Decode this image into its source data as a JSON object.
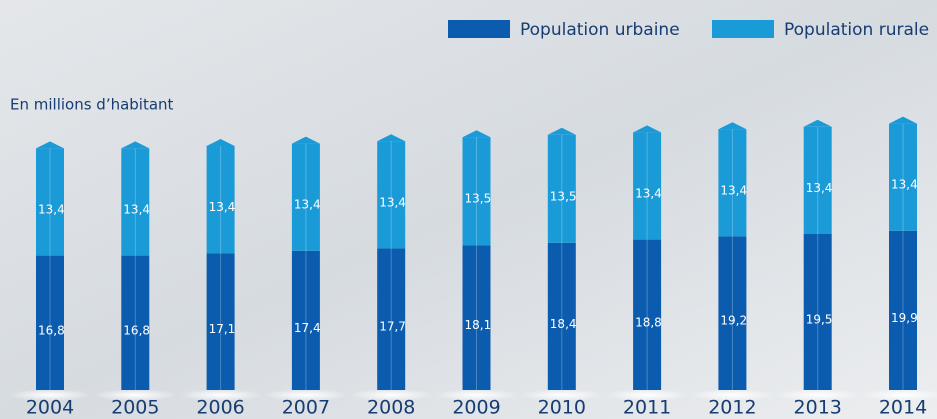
{
  "chart_data": {
    "type": "bar",
    "stacked": true,
    "y_label": "En millions d’habitant",
    "legend": "top-right",
    "categories": [
      "2004",
      "2005",
      "2006",
      "2007",
      "2008",
      "2009",
      "2010",
      "2011",
      "2012",
      "2013",
      "2014"
    ],
    "series": [
      {
        "name": "Population urbaine",
        "color": "#0b5cae",
        "values": [
          16.8,
          16.8,
          17.1,
          17.4,
          17.7,
          18.1,
          18.4,
          18.8,
          19.2,
          19.5,
          19.9
        ],
        "value_labels": [
          "16,8",
          "16,8",
          "17,1",
          "17,4",
          "17,7",
          "18,1",
          "18,4",
          "18,8",
          "19,2",
          "19,5",
          "19,9"
        ]
      },
      {
        "name": "Population rurale",
        "color": "#1b9ad8",
        "values": [
          13.4,
          13.4,
          13.4,
          13.4,
          13.4,
          13.5,
          13.5,
          13.4,
          13.4,
          13.4,
          13.4
        ],
        "value_labels": [
          "13,4",
          "13,4",
          "13,4",
          "13,4",
          "13,4",
          "13,5",
          "13,5",
          "13,4",
          "13,4",
          "13,4",
          "13,4"
        ]
      }
    ]
  }
}
